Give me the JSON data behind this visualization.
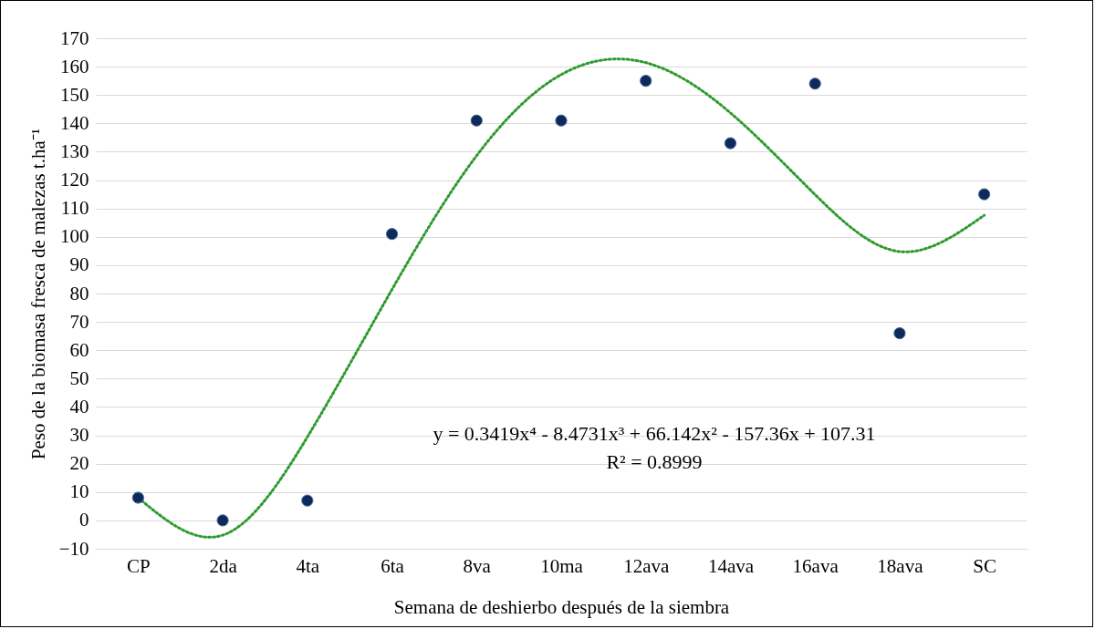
{
  "chart_data": {
    "type": "scatter",
    "xlabel": "Semana de deshierbo después de la siembra",
    "ylabel": "Peso de la biomasa fresca de malezas t.ha⁻¹",
    "categories": [
      "CP",
      "2da",
      "4ta",
      "6ta",
      "8va",
      "10ma",
      "12ava",
      "14ava",
      "16ava",
      "18ava",
      "SC"
    ],
    "ylim": [
      -10,
      170
    ],
    "yticks": [
      -10,
      0,
      10,
      20,
      30,
      40,
      50,
      60,
      70,
      80,
      90,
      100,
      110,
      120,
      130,
      140,
      150,
      160,
      170
    ],
    "grid": "y",
    "series": [
      {
        "color": "#0e2a5a",
        "marker": "circle",
        "values": [
          8,
          0,
          7,
          101,
          141,
          141,
          155,
          133,
          154,
          66,
          115
        ]
      },
      {
        "type": "line",
        "color": "#2e9a2e",
        "line_style": "dotted",
        "marker": "none",
        "values": [
          8,
          -5.2,
          29.4,
          81.4,
          128.6,
          157.2,
          161.4,
          143.7,
          114.9,
          94.8,
          107.6
        ]
      }
    ],
    "annotations": [
      "y = 0.3419x⁴ - 8.4731x³ + 66.142x² - 157.36x + 107.31",
      "R² = 0.8999"
    ]
  }
}
